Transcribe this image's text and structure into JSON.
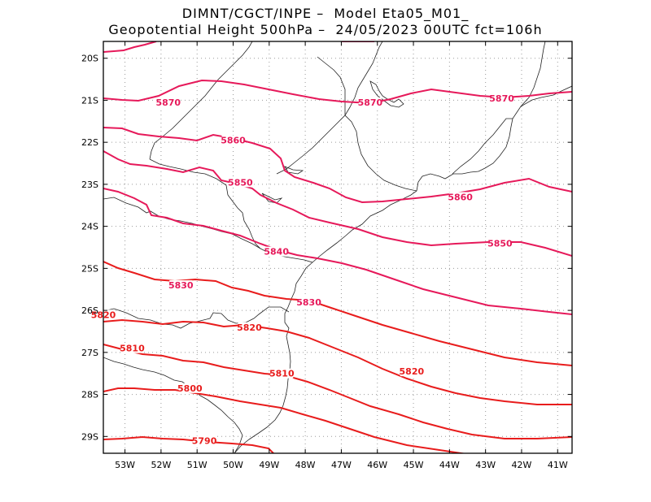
{
  "title": {
    "line1": "DIMNT/CGCT/INPE –  Model Eta05_M01_",
    "line2": "Geopotential Height 500hPa –  24/05/2023 00UTC fct=106h"
  },
  "map_data": {
    "field": "geopotential_height_500hPa",
    "units": "gpm",
    "lon_range": [
      -53.6,
      -40.6
    ],
    "lat_range": [
      -29.4,
      -19.6
    ],
    "x_ticks": [
      "53W",
      "52W",
      "51W",
      "50W",
      "49W",
      "48W",
      "47W",
      "46W",
      "45W",
      "44W",
      "43W",
      "42W",
      "41W"
    ],
    "y_ticks": [
      "20S",
      "21S",
      "22S",
      "23S",
      "24S",
      "25S",
      "26S",
      "27S",
      "28S",
      "29S"
    ],
    "grid": "dotted",
    "contour_color_high": "#e6195a",
    "contour_color_low": "#e81c1c",
    "contour_labels": [
      {
        "value": "5870",
        "lon": -51.8,
        "lat": -21.05
      },
      {
        "value": "5870",
        "lon": -46.2,
        "lat": -21.05
      },
      {
        "value": "5870",
        "lon": -42.55,
        "lat": -20.95
      },
      {
        "value": "5860",
        "lon": -50.0,
        "lat": -21.95
      },
      {
        "value": "5860",
        "lon": -43.7,
        "lat": -23.3
      },
      {
        "value": "5850",
        "lon": -49.8,
        "lat": -22.95
      },
      {
        "value": "5850",
        "lon": -42.6,
        "lat": -24.4
      },
      {
        "value": "5840",
        "lon": -48.8,
        "lat": -24.6
      },
      {
        "value": "5830",
        "lon": -51.45,
        "lat": -25.4
      },
      {
        "value": "5830",
        "lon": -47.9,
        "lat": -25.8
      },
      {
        "value": "5820",
        "lon": -53.6,
        "lat": -26.1
      },
      {
        "value": "5820",
        "lon": -49.55,
        "lat": -26.4
      },
      {
        "value": "5820",
        "lon": -45.05,
        "lat": -27.45
      },
      {
        "value": "5810",
        "lon": -52.8,
        "lat": -26.9
      },
      {
        "value": "5810",
        "lon": -48.65,
        "lat": -27.5
      },
      {
        "value": "5800",
        "lon": -51.2,
        "lat": -27.85
      },
      {
        "value": "5790",
        "lon": -50.8,
        "lat": -29.1
      }
    ]
  }
}
